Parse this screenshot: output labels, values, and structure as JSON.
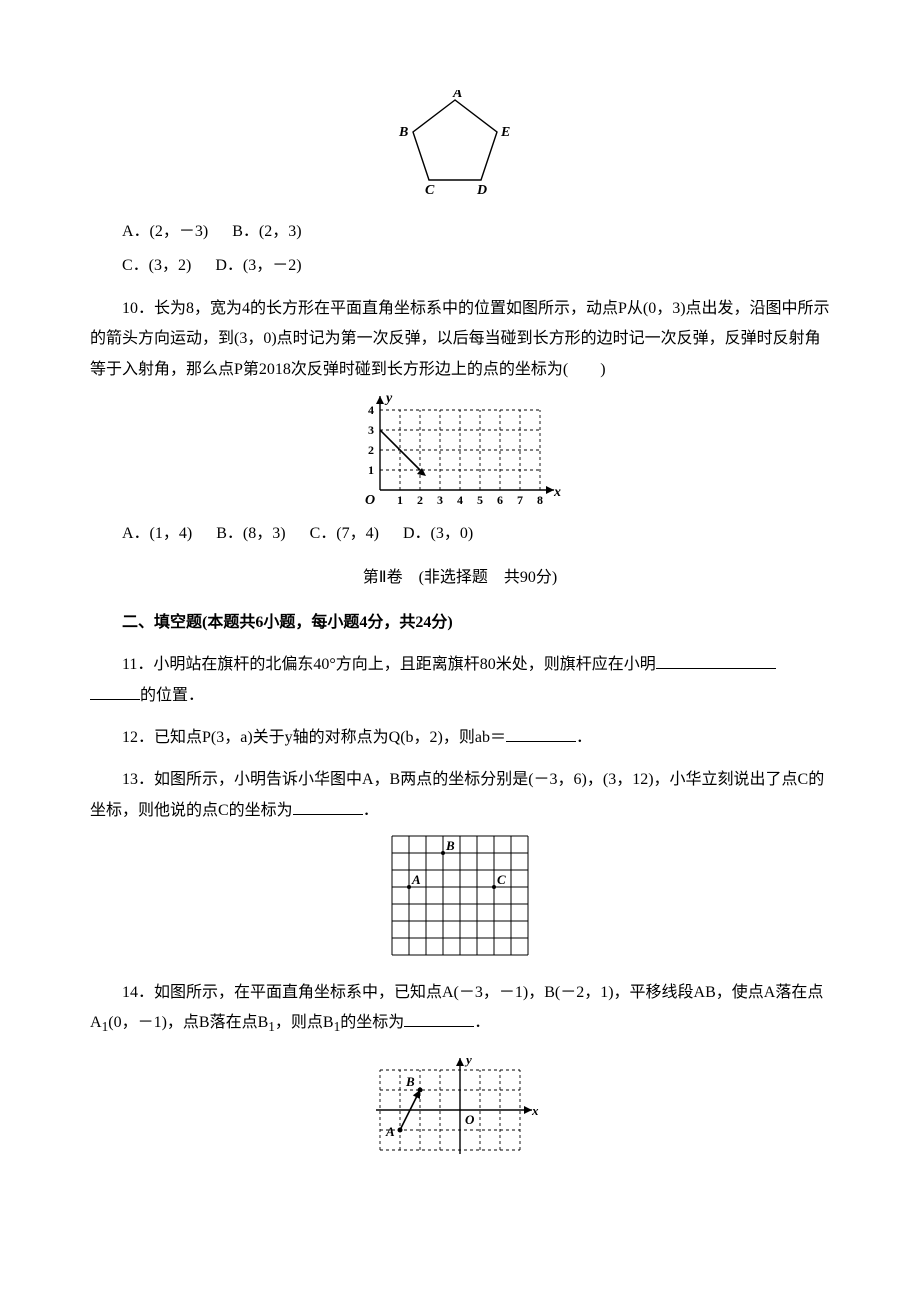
{
  "pentagon": {
    "labels": {
      "A": "A",
      "B": "B",
      "C": "C",
      "D": "D",
      "E": "E"
    },
    "points": {
      "A": [
        60,
        10
      ],
      "B": [
        18,
        42
      ],
      "C": [
        34,
        90
      ],
      "D": [
        86,
        90
      ],
      "E": [
        102,
        42
      ]
    },
    "label_offsets": {
      "A": [
        58,
        7
      ],
      "B": [
        4,
        46
      ],
      "C": [
        30,
        104
      ],
      "D": [
        82,
        104
      ],
      "E": [
        106,
        46
      ]
    },
    "stroke": "#000000",
    "stroke_width": 1.4,
    "label_font": "italic 14px serif"
  },
  "q9_options": {
    "a": "A．(2，－3)",
    "b": "B．(2，3)",
    "c": "C．(3，2)",
    "d": "D．(3，－2)"
  },
  "q10": {
    "text": "10．长为8，宽为4的长方形在平面直角坐标系中的位置如图所示，动点P从(0，3)点出发，沿图中所示的箭头方向运动，到(3，0)点时记为第一次反弹，以后每当碰到长方形的边时记一次反弹，反弹时反射角等于入射角，那么点P第2018次反弹时碰到长方形边上的点的坐标为(　　)",
    "chart": {
      "x_ticks": [
        "1",
        "2",
        "3",
        "4",
        "5",
        "6",
        "7",
        "8"
      ],
      "y_ticks": [
        "1",
        "2",
        "3",
        "4"
      ],
      "x_label": "x",
      "y_label": "y",
      "origin_label": "O",
      "cell": 20,
      "axis_color": "#000000",
      "grid_color": "#000000",
      "grid_dash": "3,3",
      "line_color": "#000000",
      "line_points": [
        [
          0,
          3
        ],
        [
          2,
          1
        ]
      ],
      "arrow_tip": [
        2.3,
        0.7
      ],
      "frame": {
        "w": 8,
        "h": 4
      }
    },
    "options": {
      "a": "A．(1，4)",
      "b": "B．(8，3)",
      "c": "C．(7，4)",
      "d": "D．(3，0)"
    }
  },
  "part2_title": "第Ⅱ卷　(非选择题　共90分)",
  "fill_heading": "二、填空题(本题共6小题，每小题4分，共24分)",
  "q11": {
    "text_a": "11．小明站在旗杆的北偏东40°方向上，且距离旗杆80米处，则旗杆应在小明",
    "text_b": "的位置．"
  },
  "q12": {
    "text_a": "12．已知点P(3，a)关于y轴的对称点为Q(b，2)，则ab＝",
    "text_b": "．"
  },
  "q13": {
    "text": "13．如图所示，小明告诉小华图中A，B两点的坐标分别是(－3，6)，(3，12)，小华立刻说出了点C的坐标，则他说的点C的坐标为",
    "tail": "．",
    "grid": {
      "cols": 8,
      "rows": 7,
      "cell": 17,
      "stroke": "#000000",
      "labels": {
        "A": {
          "col": 1,
          "row": 3,
          "text": "A"
        },
        "B": {
          "col": 3,
          "row": 1,
          "text": "B"
        },
        "C": {
          "col": 6,
          "row": 3,
          "text": "C"
        }
      }
    }
  },
  "q14": {
    "text_a": "14．如图所示，在平面直角坐标系中，已知点A(－3，－1)，B(－2，1)，平移线段AB，使点A落在点A",
    "sub1": "1",
    "text_b": "(0，－1)，点B落在点B",
    "text_c": "，则点B",
    "text_d": "的坐标为",
    "tail": "．",
    "chart": {
      "cell": 20,
      "x_range": [
        -4,
        3
      ],
      "y_range": [
        -2,
        2
      ],
      "x_label": "x",
      "y_label": "y",
      "origin_label": "O",
      "grid_dash": "3,3",
      "grid_color": "#000000",
      "axis_color": "#000000",
      "A": [
        -3,
        -1
      ],
      "B": [
        -2,
        1
      ],
      "A_label": "A",
      "B_label": "B"
    }
  }
}
